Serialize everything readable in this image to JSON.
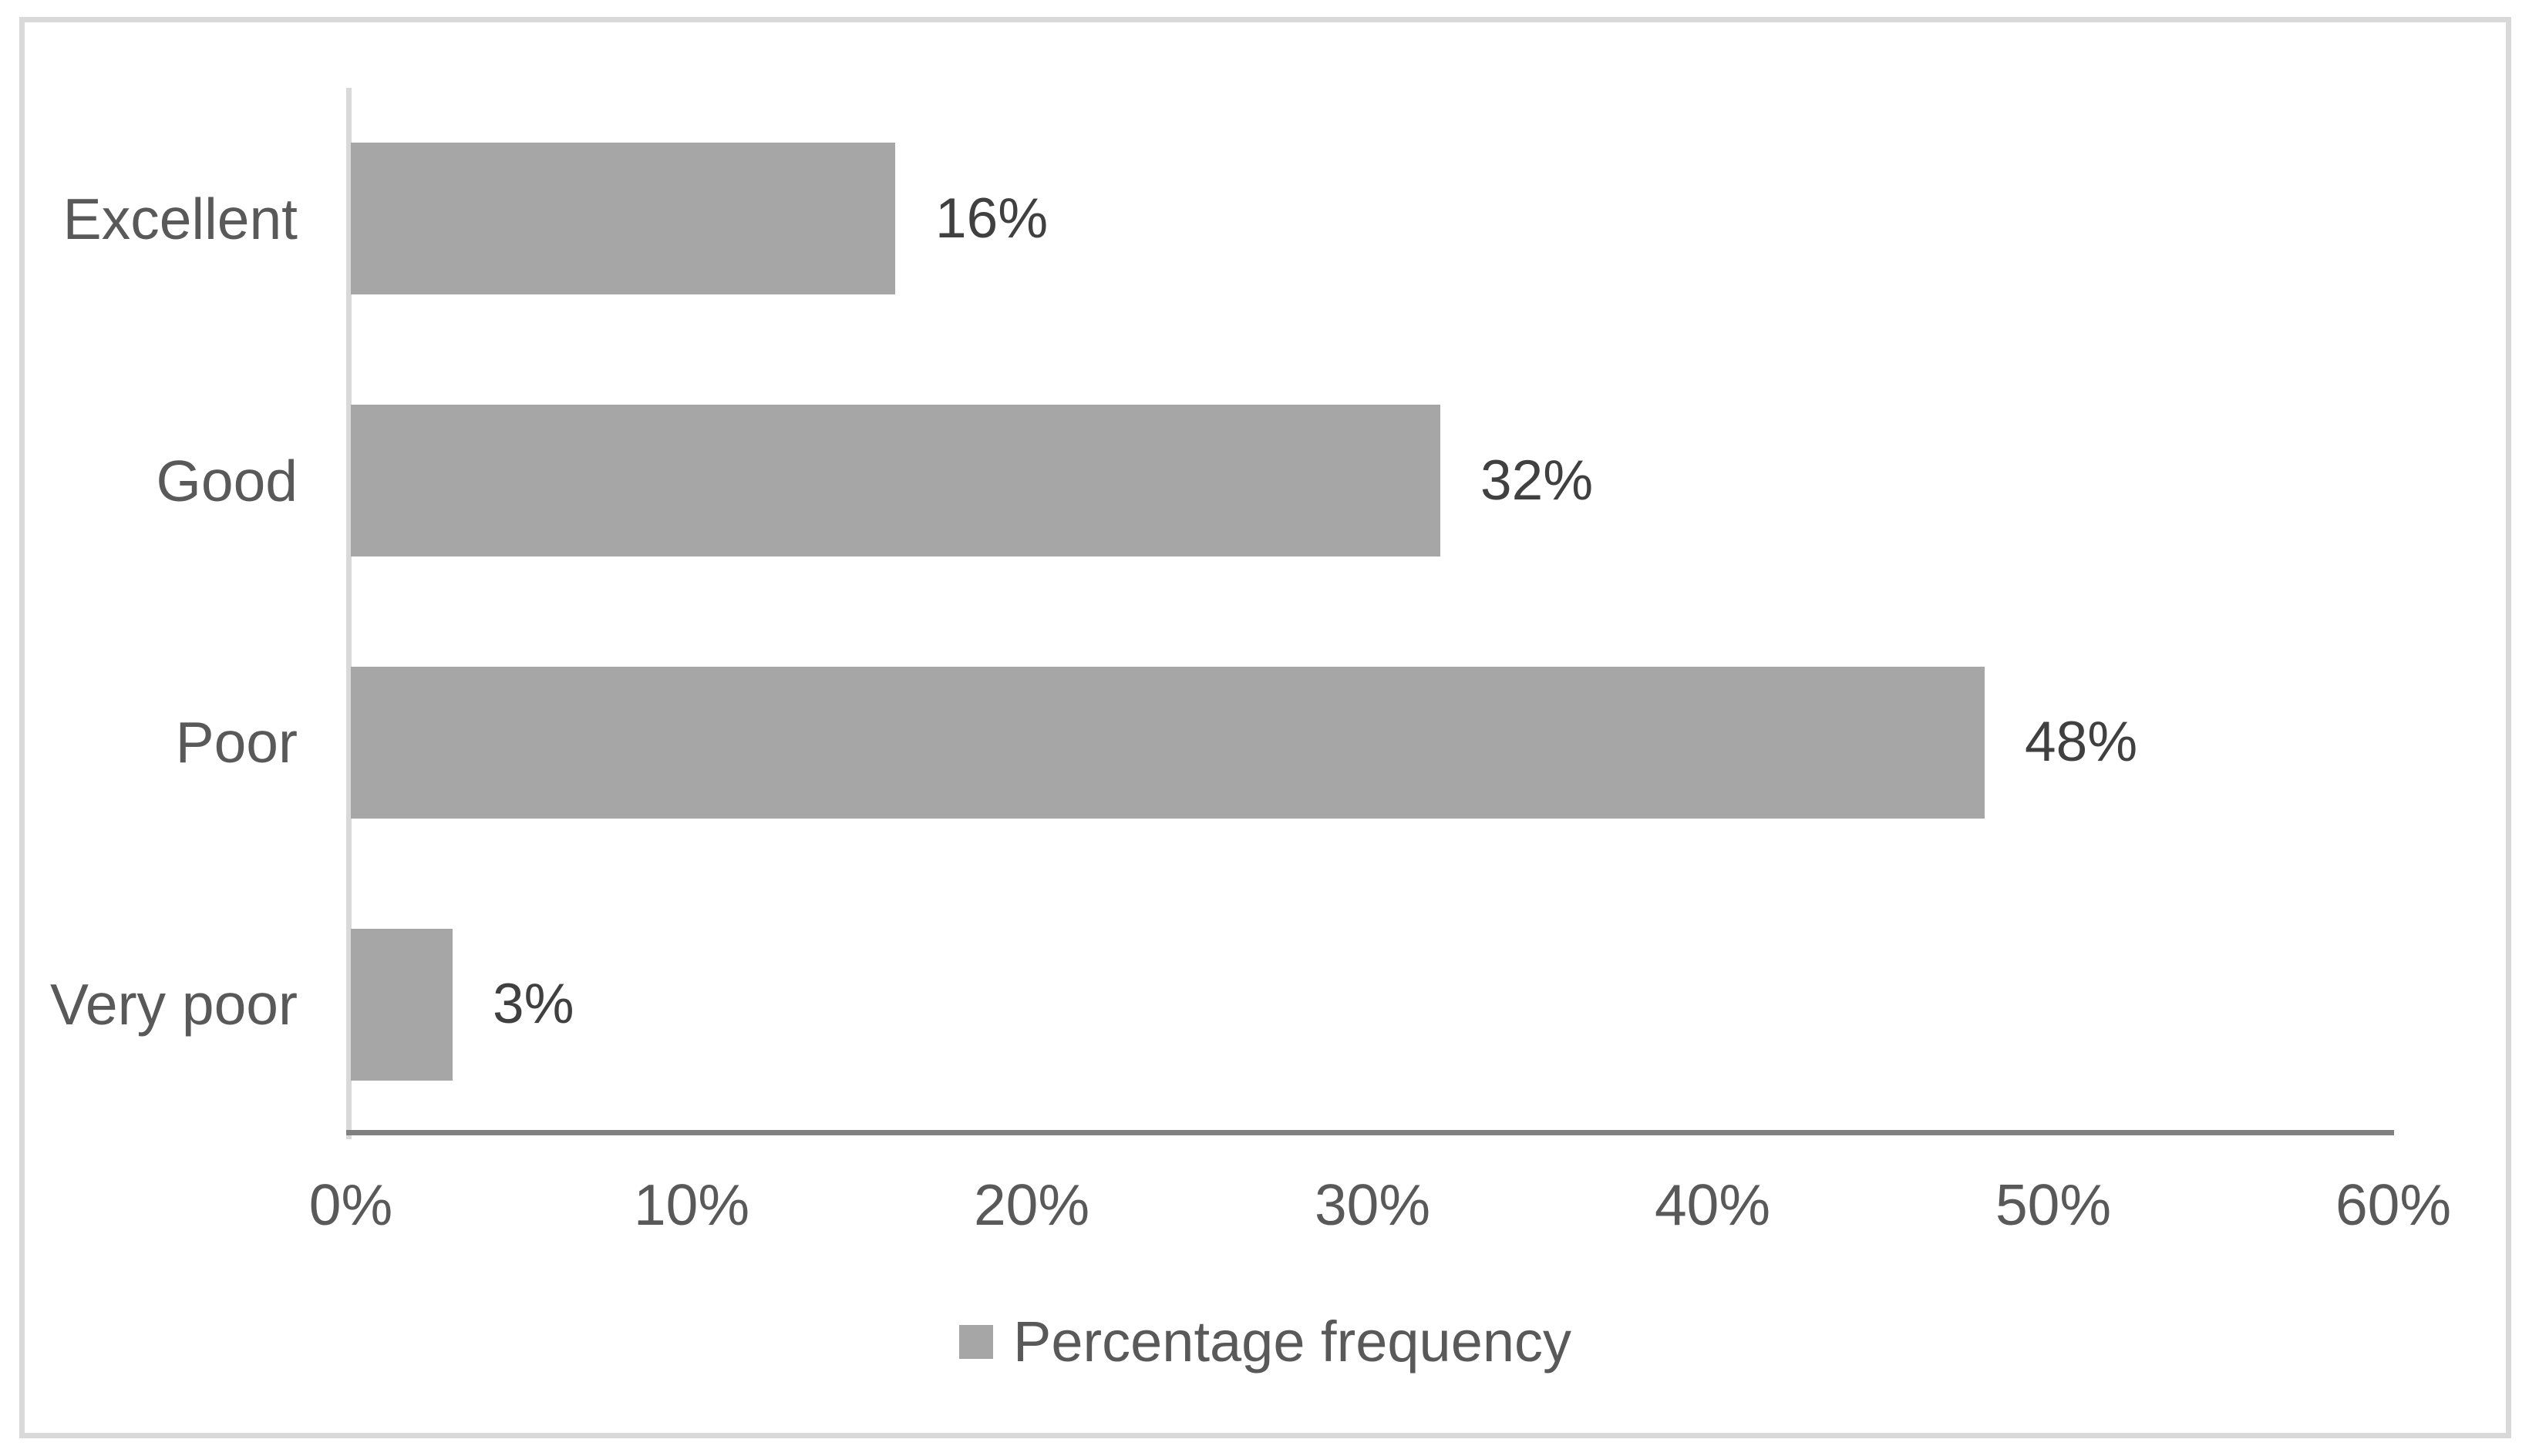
{
  "chart_data": {
    "type": "bar",
    "orientation": "horizontal",
    "title": "",
    "xlabel": "",
    "ylabel": "",
    "categories": [
      "Excellent",
      "Good",
      "Poor",
      "Very poor"
    ],
    "values": [
      16,
      32,
      48,
      3
    ],
    "value_labels": [
      "16%",
      "32%",
      "48%",
      "3%"
    ],
    "series": [
      {
        "name": "Percentage frequency",
        "values": [
          16,
          32,
          48,
          3
        ]
      }
    ],
    "x_axis": {
      "min": 0,
      "max": 60,
      "tick_step": 10,
      "ticks": [
        "0%",
        "10%",
        "20%",
        "30%",
        "40%",
        "50%",
        "60%"
      ]
    },
    "grid": false,
    "legend": {
      "position": "bottom",
      "entries": [
        "Percentage frequency"
      ]
    },
    "colors": {
      "bar_fill": "#a6a6a6",
      "value_axis_line": "#808080",
      "category_axis_line": "#d9d9d9",
      "frame_border": "#d9d9d9",
      "axis_text": "#595959",
      "category_text": "#595959",
      "data_label_text": "#404040",
      "legend_text": "#595959",
      "background": "#ffffff"
    }
  }
}
